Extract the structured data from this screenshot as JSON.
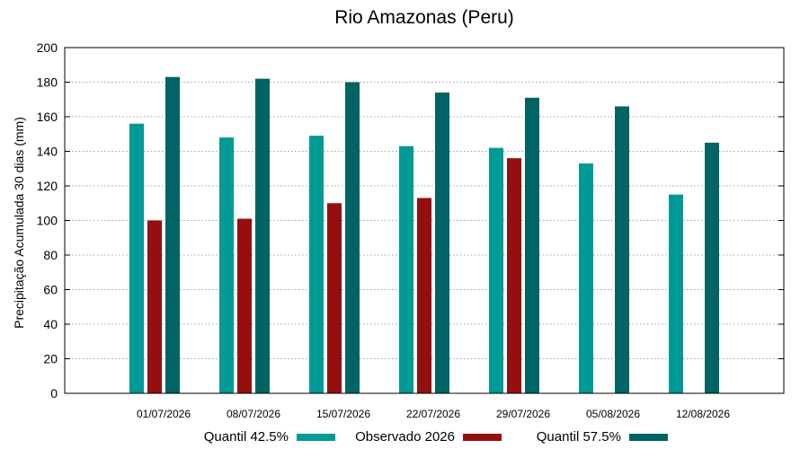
{
  "chart_data": {
    "type": "bar",
    "title": "Rio Amazonas (Peru)",
    "xlabel": "",
    "ylabel": "Precipitação Acumulada 30 dias (mm)",
    "ylim": [
      0,
      200
    ],
    "yticks": [
      0,
      20,
      40,
      60,
      80,
      100,
      120,
      140,
      160,
      180,
      200
    ],
    "grid": true,
    "legend_position": "bottom",
    "categories": [
      "01/07/2026",
      "08/07/2026",
      "15/07/2026",
      "22/07/2026",
      "29/07/2026",
      "05/08/2026",
      "12/08/2026"
    ],
    "series": [
      {
        "name": "Quantil 42.5%",
        "color": "#009a96",
        "values": [
          156,
          148,
          149,
          143,
          142,
          133,
          115
        ]
      },
      {
        "name": "Observado 2026",
        "color": "#960f0f",
        "values": [
          100,
          101,
          110,
          113,
          136,
          null,
          null
        ]
      },
      {
        "name": "Quantil 57.5%",
        "color": "#006464",
        "values": [
          183,
          182,
          180,
          174,
          171,
          166,
          145
        ]
      }
    ]
  }
}
